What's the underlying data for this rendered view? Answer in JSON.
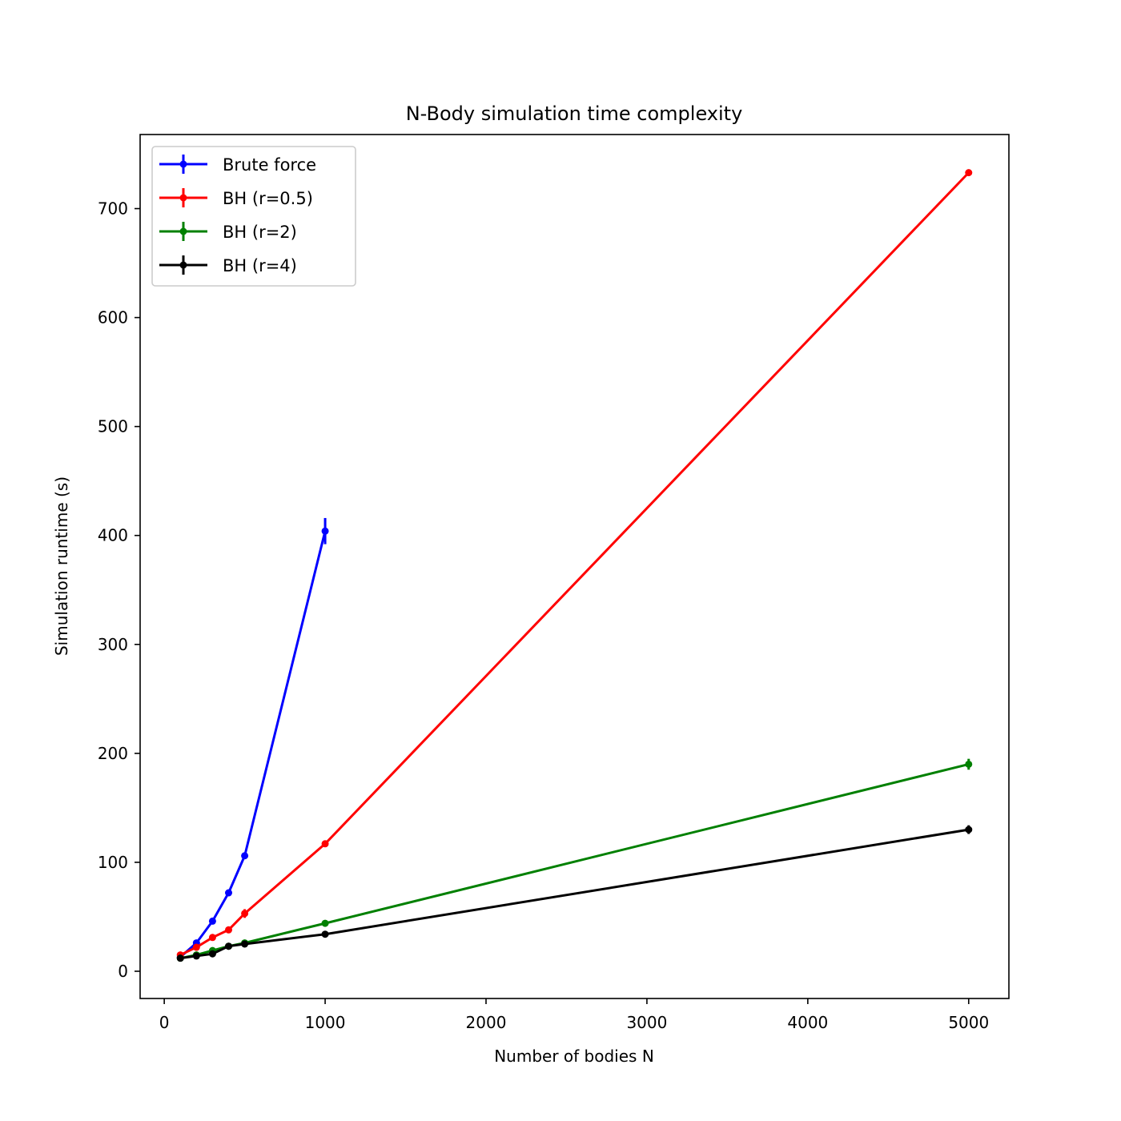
{
  "chart_data": {
    "type": "line",
    "title": "N-Body simulation time complexity",
    "xlabel": "Number of bodies N",
    "ylabel": "Simulation runtime (s)",
    "xlim": [
      -150,
      5250
    ],
    "ylim": [
      -25,
      768
    ],
    "xticks": [
      0,
      1000,
      2000,
      3000,
      4000,
      5000
    ],
    "yticks": [
      0,
      100,
      200,
      300,
      400,
      500,
      600,
      700
    ],
    "grid": false,
    "legend_position": "top-left",
    "series": [
      {
        "name": "Brute force",
        "color": "#0000ff",
        "x": [
          100,
          200,
          300,
          400,
          500,
          1000
        ],
        "y": [
          13,
          26,
          46,
          72,
          106,
          404
        ],
        "err": [
          1,
          1,
          1.5,
          2,
          2,
          12
        ]
      },
      {
        "name": "BH (r=0.5)",
        "color": "#ff0000",
        "x": [
          100,
          200,
          300,
          400,
          500,
          1000,
          5000
        ],
        "y": [
          15,
          22,
          31,
          38,
          53,
          117,
          733
        ],
        "err": [
          1,
          1,
          1,
          1,
          4,
          2,
          3
        ]
      },
      {
        "name": "BH (r=2)",
        "color": "#008000",
        "x": [
          100,
          200,
          300,
          400,
          500,
          1000,
          5000
        ],
        "y": [
          12,
          15,
          19,
          23,
          26,
          44,
          190
        ],
        "err": [
          1,
          1,
          1,
          1,
          1,
          1,
          5
        ]
      },
      {
        "name": "BH (r=4)",
        "color": "#000000",
        "x": [
          100,
          200,
          300,
          400,
          500,
          1000,
          5000
        ],
        "y": [
          12,
          14,
          16,
          23,
          25,
          34,
          130
        ],
        "err": [
          1,
          1,
          1,
          1,
          1,
          1,
          4
        ]
      }
    ]
  }
}
